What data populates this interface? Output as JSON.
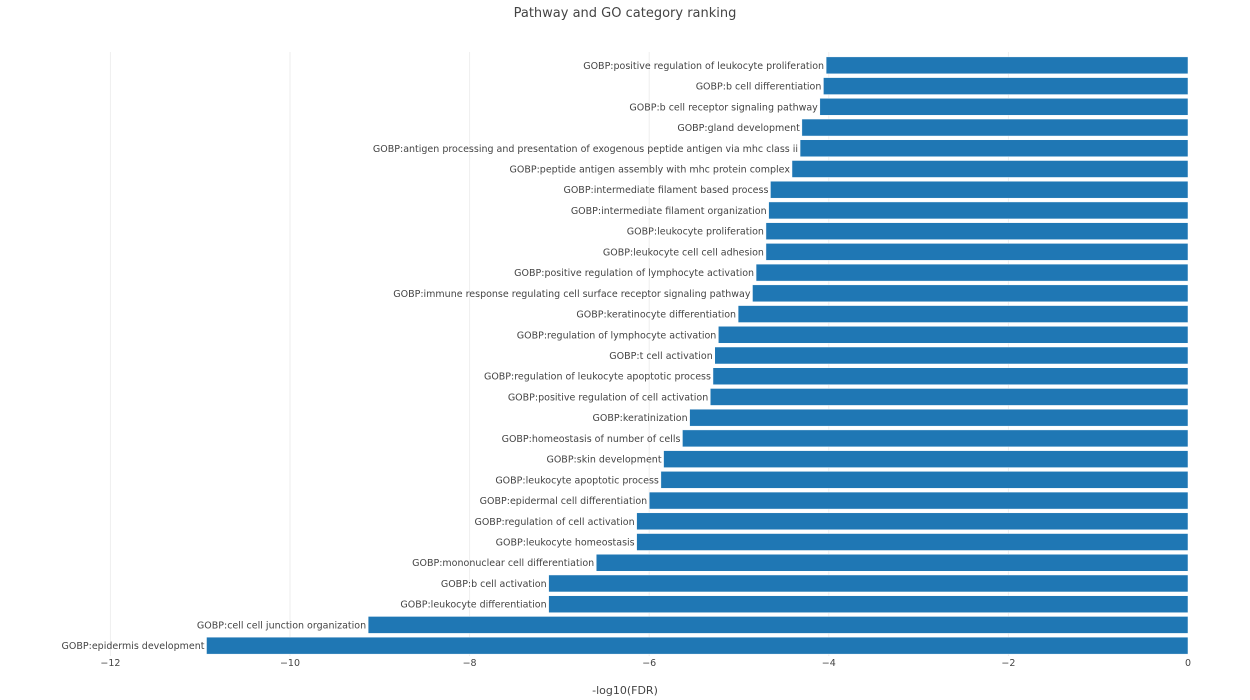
{
  "chart_data": {
    "type": "bar",
    "orientation": "horizontal",
    "title": "Pathway and GO category ranking",
    "xlabel": "-log10(FDR)",
    "ylabel": "",
    "xlim": [
      -12.2,
      0
    ],
    "xticks": [
      -12,
      -10,
      -8,
      -6,
      -4,
      -2,
      0
    ],
    "xtick_labels": [
      "−12",
      "−10",
      "−8",
      "−6",
      "−4",
      "−2",
      "0"
    ],
    "grid": true,
    "bar_color": "#1f77b4",
    "categories": [
      "GOBP:positive regulation of leukocyte proliferation",
      "GOBP:b cell differentiation",
      "GOBP:b cell receptor signaling pathway",
      "GOBP:gland development",
      "GOBP:antigen processing and presentation of exogenous peptide antigen via mhc class ii",
      "GOBP:peptide antigen assembly with mhc protein complex",
      "GOBP:intermediate filament based process",
      "GOBP:intermediate filament organization",
      "GOBP:leukocyte proliferation",
      "GOBP:leukocyte cell cell adhesion",
      "GOBP:positive regulation of lymphocyte activation",
      "GOBP:immune response regulating cell surface receptor signaling pathway",
      "GOBP:keratinocyte differentiation",
      "GOBP:regulation of lymphocyte activation",
      "GOBP:t cell activation",
      "GOBP:regulation of leukocyte apoptotic process",
      "GOBP:positive regulation of cell activation",
      "GOBP:keratinization",
      "GOBP:homeostasis of number of cells",
      "GOBP:skin development",
      "GOBP:leukocyte apoptotic process",
      "GOBP:epidermal cell differentiation",
      "GOBP:regulation of cell activation",
      "GOBP:leukocyte homeostasis",
      "GOBP:mononuclear cell differentiation",
      "GOBP:b cell activation",
      "GOBP:leukocyte differentiation",
      "GOBP:cell cell junction organization",
      "GOBP:epidermis development"
    ],
    "values": [
      -4.03,
      -4.06,
      -4.1,
      -4.3,
      -4.32,
      -4.41,
      -4.65,
      -4.67,
      -4.7,
      -4.7,
      -4.81,
      -4.85,
      -5.01,
      -5.23,
      -5.27,
      -5.29,
      -5.32,
      -5.55,
      -5.63,
      -5.84,
      -5.87,
      -6.0,
      -6.14,
      -6.14,
      -6.59,
      -7.12,
      -7.12,
      -9.13,
      -10.93
    ]
  }
}
